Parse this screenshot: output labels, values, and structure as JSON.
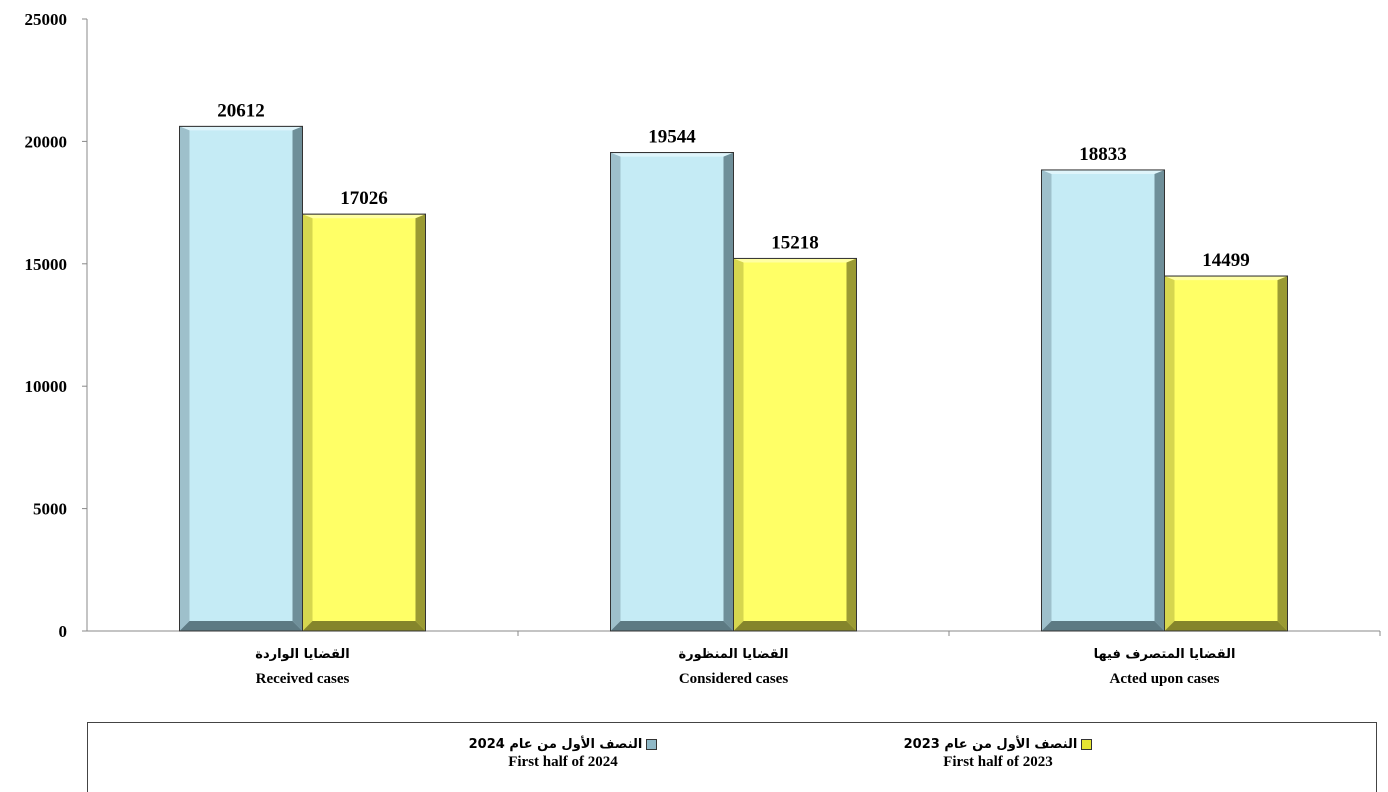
{
  "chart_data": {
    "type": "bar",
    "categories": [
      {
        "ar": "القضايا الواردة",
        "en": "Received cases"
      },
      {
        "ar": "القضايا المنظورة",
        "en": "Considered cases"
      },
      {
        "ar": "القضايا المتصرف فيها",
        "en": "Acted upon cases"
      }
    ],
    "series": [
      {
        "name_ar": "النصف الأول من عام 2024",
        "name_en": "First half of 2024",
        "color": "#c5ebf5",
        "values": [
          20612,
          19544,
          18833
        ]
      },
      {
        "name_ar": "النصف الأول من عام 2023",
        "name_en": "First half of 2023",
        "color": "#ffff66",
        "values": [
          17026,
          15218,
          14499
        ]
      }
    ],
    "ylim": [
      0,
      25000
    ],
    "yticks": [
      0,
      5000,
      10000,
      15000,
      20000,
      25000
    ],
    "grid": false,
    "legend": "bottom"
  },
  "legend": {
    "item1_ar": "النصف الأول من عام 2024",
    "item1_en": "First half of 2024",
    "item2_ar": "النصف الأول من عام 2023",
    "item2_en": "First half of 2023"
  }
}
